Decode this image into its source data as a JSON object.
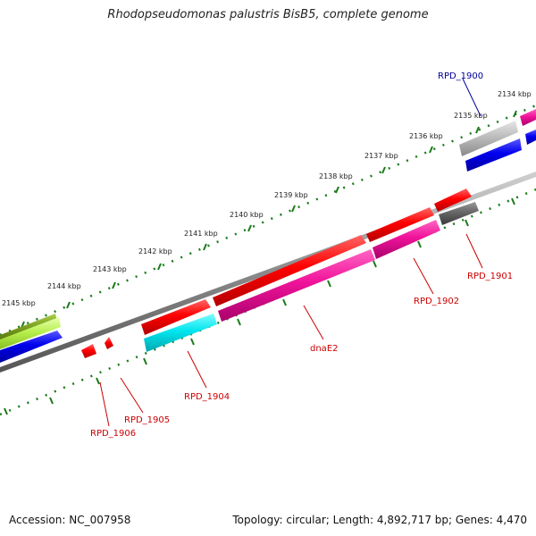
{
  "title": "Rhodopseudomonas palustris BisB5, complete genome",
  "footer": {
    "accession": "Accession: NC_007958",
    "topology": "Topology: circular; Length: 4,892,717 bp; Genes: 4,470"
  },
  "colors": {
    "label_red": "#cc0000",
    "label_blue": "#000099",
    "tick_green": "#1a7a1a",
    "backbone": "#888888"
  },
  "ticks": {
    "t2134": "2134 kbp",
    "t2135": "2135 kbp",
    "t2136": "2136 kbp",
    "t2137": "2137 kbp",
    "t2138": "2138 kbp",
    "t2139": "2139 kbp",
    "t2140": "2140 kbp",
    "t2141": "2141 kbp",
    "t2142": "2142 kbp",
    "t2143": "2143 kbp",
    "t2144": "2144 kbp",
    "t2145": "2145 kbp"
  },
  "genes": {
    "rpd1900": "RPD_1900",
    "rpd1901": "RPD_1901",
    "rpd1902": "RPD_1902",
    "dnae2": "dnaE2",
    "rpd1904": "RPD_1904",
    "rpd1905": "RPD_1905",
    "rpd1906": "RPD_1906"
  }
}
